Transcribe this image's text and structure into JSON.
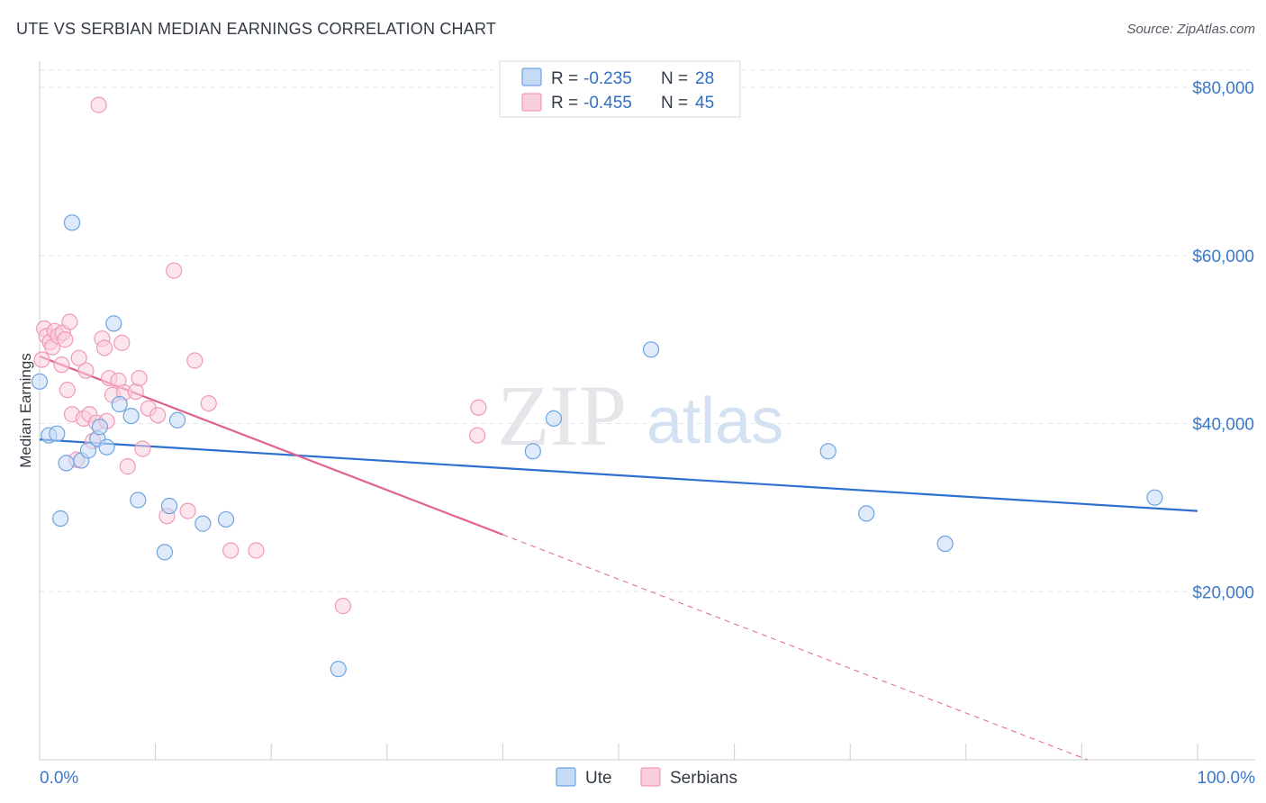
{
  "header": {
    "title": "UTE VS SERBIAN MEDIAN EARNINGS CORRELATION CHART",
    "source": "Source: ZipAtlas.com"
  },
  "watermark": {
    "zip": "ZIP",
    "atlas": "atlas"
  },
  "colors": {
    "ute": "#6fa3e0",
    "ute_fill": "#c5daf5",
    "ute_line": "#2f6fd0",
    "serbians": "#f09ab8",
    "serbians_fill": "#f9cfdd",
    "serbians_line": "#e0628f",
    "tick_text": "#3a78c9",
    "grid": "#dfe3ea"
  },
  "legend_top": {
    "ute": {
      "r_label": "R =",
      "r_value": "-0.235",
      "n_label": "N =",
      "n_value": "28"
    },
    "serbians": {
      "r_label": "R =",
      "r_value": "-0.455",
      "n_label": "N =",
      "n_value": "45"
    }
  },
  "legend_bottom": {
    "ute": "Ute",
    "serbians": "Serbians"
  },
  "chart_data": {
    "type": "scatter",
    "title": "UTE VS SERBIAN MEDIAN EARNINGS CORRELATION CHART",
    "xlabel": "",
    "ylabel": "Median Earnings",
    "xlim": [
      0,
      100
    ],
    "ylim": [
      0,
      82000
    ],
    "x_tick_labels": {
      "min": "0.0%",
      "max": "100.0%"
    },
    "y_ticks": [
      20000,
      40000,
      60000,
      80000
    ],
    "y_tick_labels": [
      "$20,000",
      "$40,000",
      "$60,000",
      "$80,000"
    ],
    "legend_position": "top-center",
    "series": [
      {
        "name": "Ute",
        "r": -0.235,
        "n": 28,
        "trend": {
          "x0": 0,
          "y0": 38100,
          "x1": 100,
          "y1": 29600,
          "dashed_from": null
        },
        "points": [
          [
            0.0,
            45000
          ],
          [
            0.8,
            38600
          ],
          [
            1.5,
            38800
          ],
          [
            1.8,
            28700
          ],
          [
            2.3,
            35300
          ],
          [
            2.8,
            63900
          ],
          [
            3.6,
            35600
          ],
          [
            4.2,
            36800
          ],
          [
            5.0,
            38200
          ],
          [
            5.2,
            39600
          ],
          [
            5.8,
            37200
          ],
          [
            6.4,
            51900
          ],
          [
            6.9,
            42300
          ],
          [
            7.9,
            40900
          ],
          [
            8.5,
            30900
          ],
          [
            10.8,
            24700
          ],
          [
            11.2,
            30200
          ],
          [
            11.9,
            40400
          ],
          [
            14.1,
            28100
          ],
          [
            16.1,
            28600
          ],
          [
            25.8,
            10800
          ],
          [
            42.6,
            36700
          ],
          [
            44.4,
            40600
          ],
          [
            52.8,
            48800
          ],
          [
            68.1,
            36700
          ],
          [
            71.4,
            29300
          ],
          [
            78.2,
            25700
          ],
          [
            96.3,
            31200
          ]
        ]
      },
      {
        "name": "Serbians",
        "r": -0.455,
        "n": 45,
        "trend": {
          "x0": 0,
          "y0": 48000,
          "x1": 90.5,
          "y1": 0,
          "dashed_from": 40.0
        },
        "points": [
          [
            0.2,
            47600
          ],
          [
            0.4,
            51300
          ],
          [
            0.6,
            50400
          ],
          [
            0.9,
            49700
          ],
          [
            1.1,
            49100
          ],
          [
            1.3,
            51000
          ],
          [
            1.6,
            50400
          ],
          [
            1.9,
            47000
          ],
          [
            2.0,
            50800
          ],
          [
            2.2,
            50000
          ],
          [
            2.4,
            44000
          ],
          [
            2.6,
            52100
          ],
          [
            2.8,
            41100
          ],
          [
            3.2,
            35700
          ],
          [
            3.4,
            47800
          ],
          [
            3.8,
            40600
          ],
          [
            4.0,
            46300
          ],
          [
            4.3,
            41100
          ],
          [
            4.6,
            37900
          ],
          [
            4.9,
            40100
          ],
          [
            5.1,
            77900
          ],
          [
            5.4,
            50100
          ],
          [
            5.6,
            49000
          ],
          [
            5.8,
            40300
          ],
          [
            6.0,
            45400
          ],
          [
            6.3,
            43400
          ],
          [
            6.8,
            45100
          ],
          [
            7.1,
            49600
          ],
          [
            7.3,
            43700
          ],
          [
            7.6,
            34900
          ],
          [
            8.3,
            43800
          ],
          [
            8.6,
            45400
          ],
          [
            8.9,
            37000
          ],
          [
            9.4,
            41800
          ],
          [
            10.2,
            41000
          ],
          [
            11.0,
            29000
          ],
          [
            11.6,
            58200
          ],
          [
            12.8,
            29600
          ],
          [
            13.4,
            47500
          ],
          [
            14.6,
            42400
          ],
          [
            16.5,
            24900
          ],
          [
            18.7,
            24900
          ],
          [
            26.2,
            18300
          ],
          [
            37.8,
            38600
          ],
          [
            37.9,
            41900
          ]
        ]
      }
    ]
  }
}
